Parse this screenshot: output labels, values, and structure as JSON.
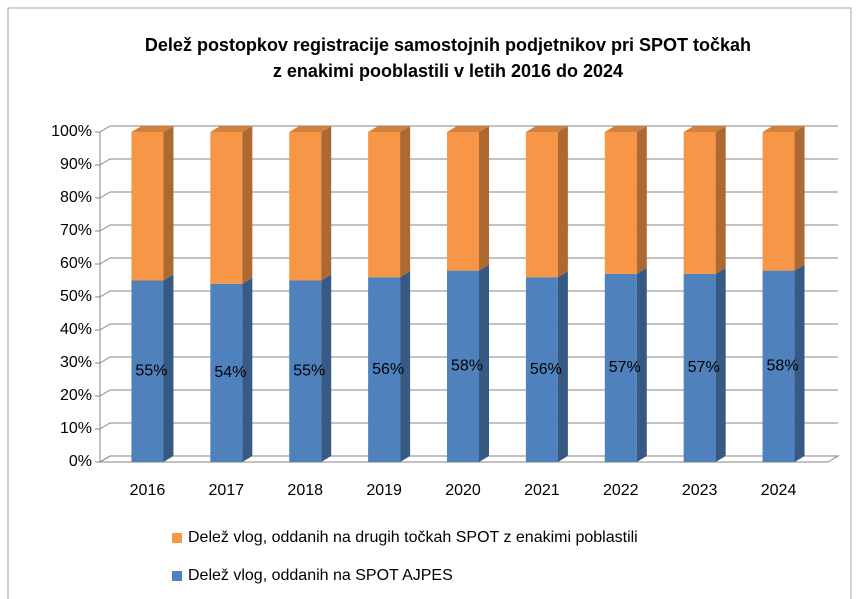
{
  "chart_data": {
    "type": "bar3d_stacked100",
    "title": [
      "Delež postopkov registracije samostojnih podjetnikov pri SPOT točkah",
      "z enakimi pooblastili v letih 2016 do 2024"
    ],
    "categories": [
      "2016",
      "2017",
      "2018",
      "2019",
      "2020",
      "2021",
      "2022",
      "2023",
      "2024"
    ],
    "series": [
      {
        "name": "Delež vlog, oddanih na SPOT AJPES",
        "color": "#4f81bd",
        "values": [
          55,
          54,
          55,
          56,
          58,
          56,
          57,
          57,
          58
        ],
        "value_labels": [
          "55%",
          "54%",
          "55%",
          "56%",
          "58%",
          "56%",
          "57%",
          "57%",
          "58%"
        ]
      },
      {
        "name": "Delež vlog, oddanih na drugih točkah SPOT z enakimi poblastili",
        "color": "#f79646",
        "values": [
          45,
          46,
          45,
          44,
          42,
          44,
          43,
          43,
          42
        ]
      }
    ],
    "ylim": [
      0,
      100
    ],
    "yticks": [
      {
        "value": 0,
        "label": "0%"
      },
      {
        "value": 10,
        "label": "10%"
      },
      {
        "value": 20,
        "label": "20%"
      },
      {
        "value": 30,
        "label": "30%"
      },
      {
        "value": 40,
        "label": "40%"
      },
      {
        "value": 50,
        "label": "50%"
      },
      {
        "value": 60,
        "label": "60%"
      },
      {
        "value": 70,
        "label": "70%"
      },
      {
        "value": 80,
        "label": "80%"
      },
      {
        "value": 90,
        "label": "90%"
      },
      {
        "value": 100,
        "label": "100%"
      }
    ],
    "grid": true
  }
}
